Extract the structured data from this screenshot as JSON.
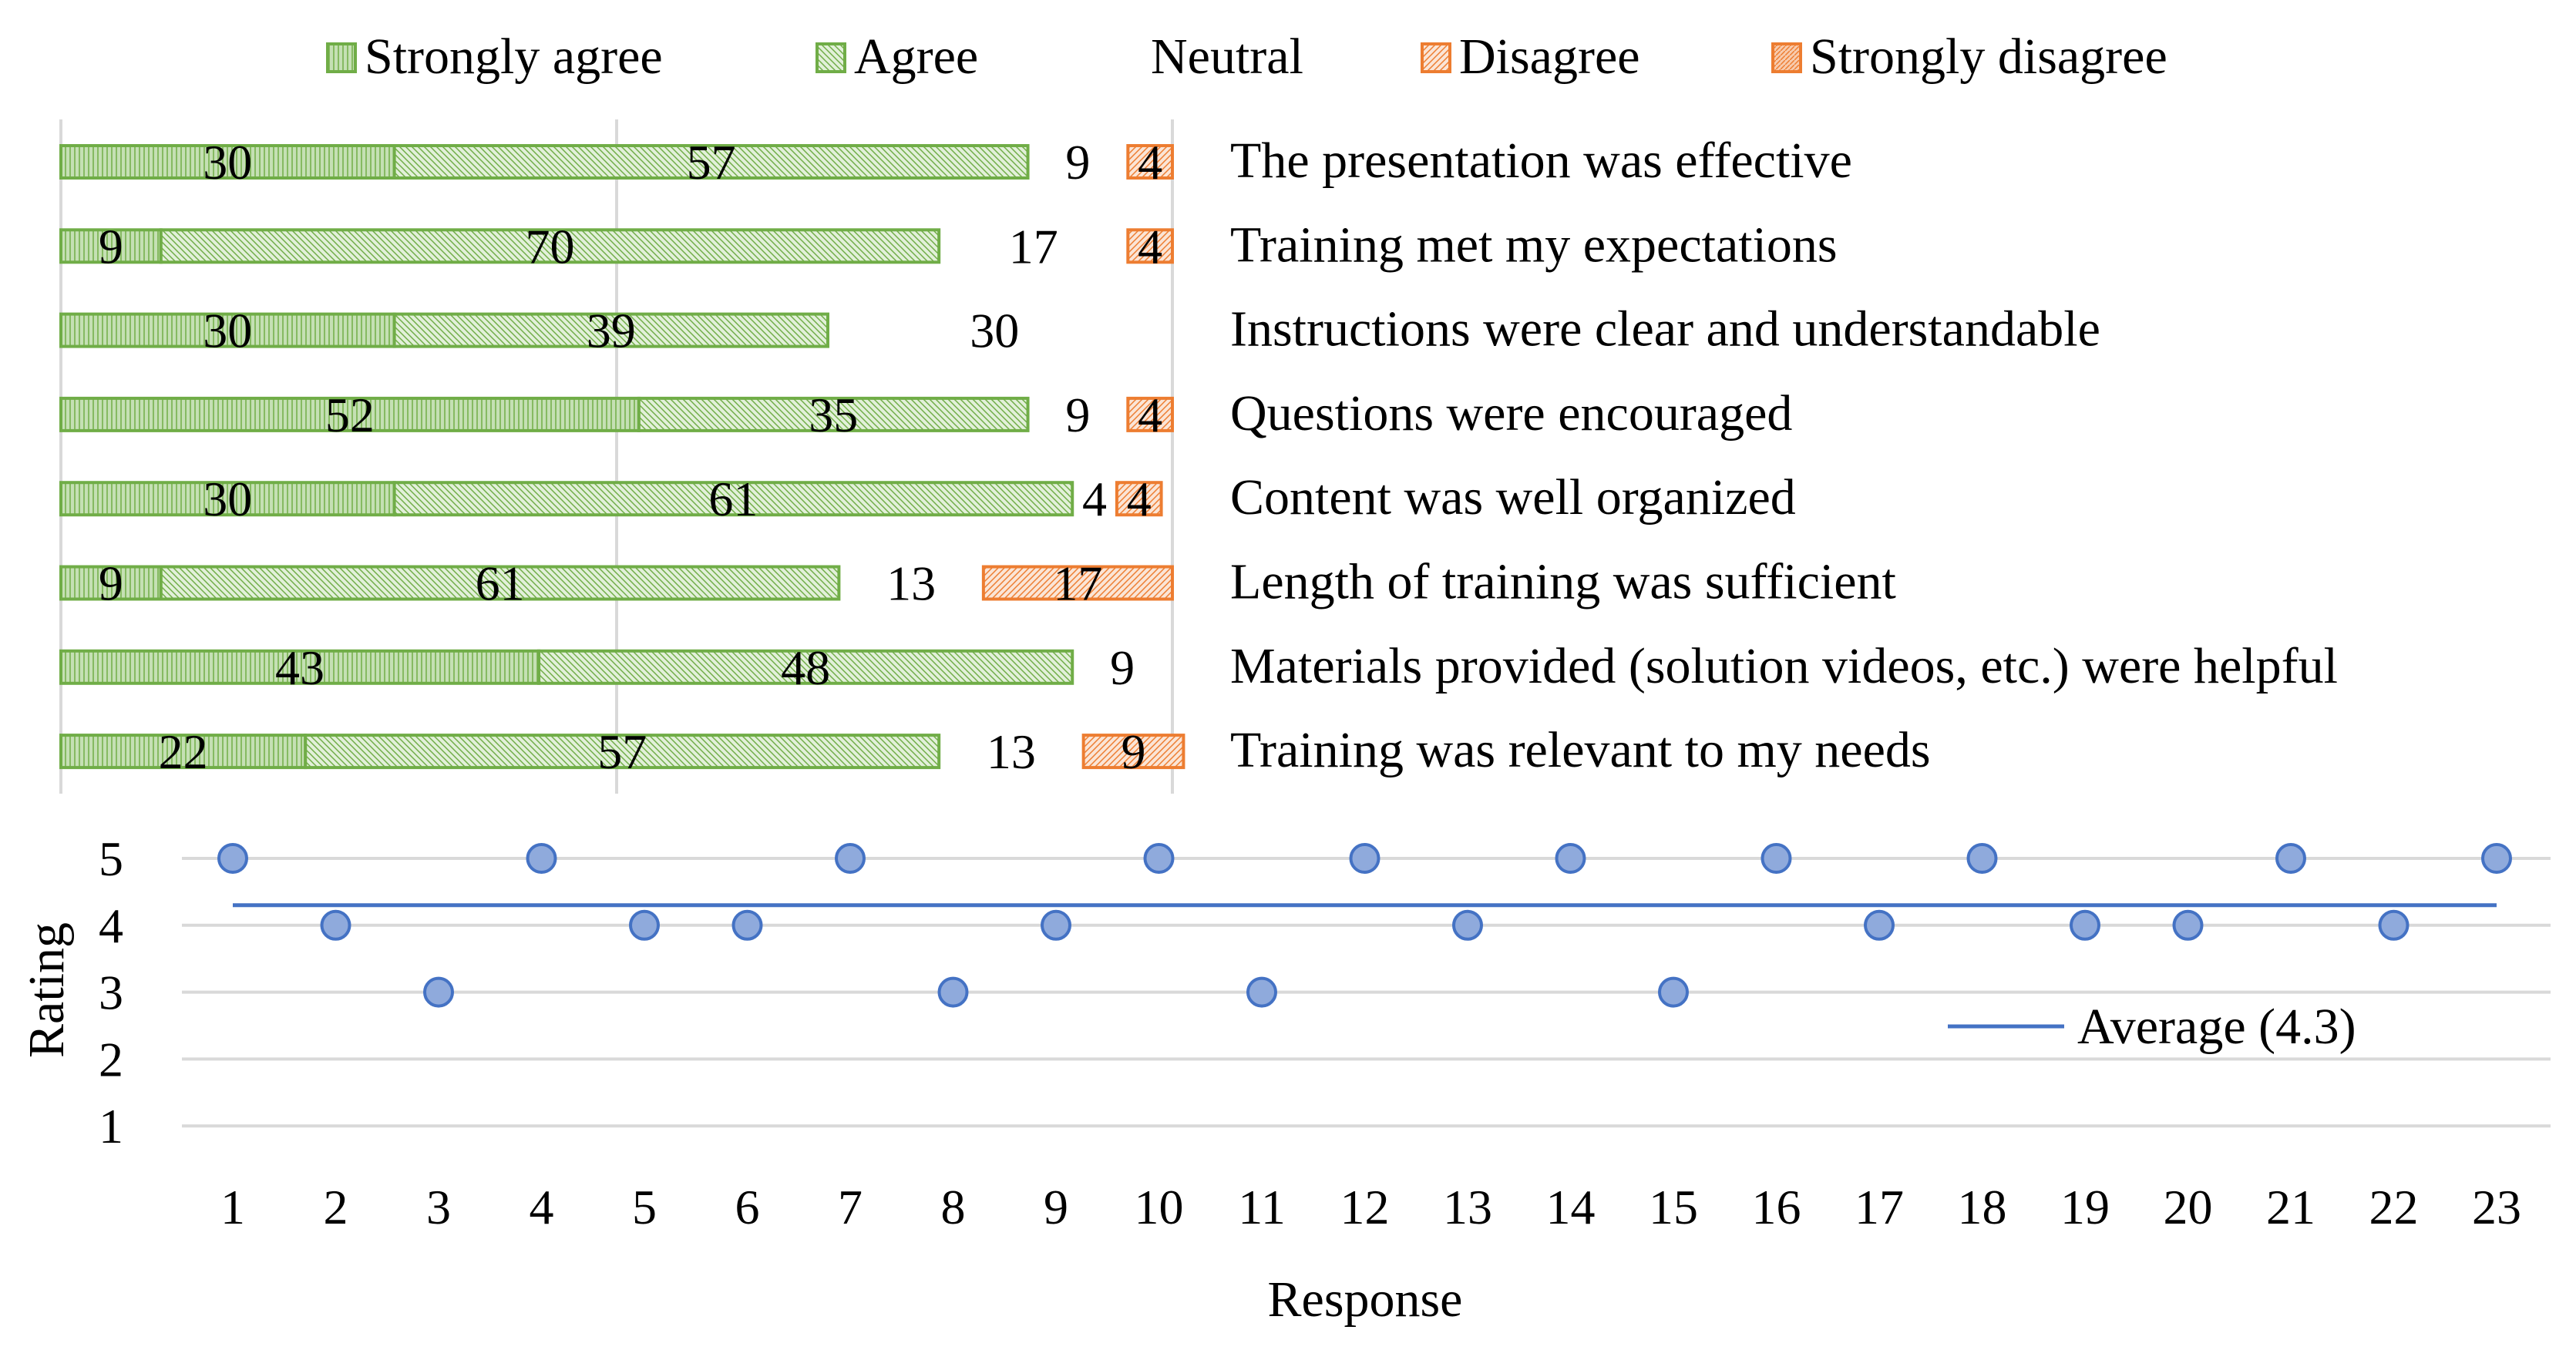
{
  "chart_data": [
    {
      "type": "bar",
      "orientation": "horizontal",
      "stacked": true,
      "legend_position": "top",
      "legend": [
        "Strongly agree",
        "Agree",
        "Neutral",
        "Disagree",
        "Strongly disagree"
      ],
      "xlim": [
        0,
        100
      ],
      "categories": [
        "The presentation was effective",
        "Training met my expectations",
        "Instructions were clear and understandable",
        "Questions were encouraged",
        "Content was well organized",
        "Length of training was sufficient",
        "Materials provided (solution videos, etc.) were helpful",
        "Training was relevant to my needs"
      ],
      "series": [
        {
          "name": "Strongly agree",
          "values": [
            30,
            9,
            30,
            52,
            30,
            9,
            43,
            22
          ],
          "color": "#70ad47"
        },
        {
          "name": "Agree",
          "values": [
            57,
            70,
            39,
            35,
            61,
            61,
            48,
            57
          ],
          "color": "#70ad47"
        },
        {
          "name": "Neutral",
          "values": [
            9,
            17,
            30,
            9,
            4,
            13,
            9,
            13
          ],
          "color": "none"
        },
        {
          "name": "Disagree",
          "values": [
            4,
            4,
            0,
            4,
            4,
            17,
            0,
            9
          ],
          "color": "#ed7d31"
        },
        {
          "name": "Strongly disagree",
          "values": [
            0,
            0,
            0,
            0,
            0,
            0,
            0,
            0
          ],
          "color": "#ed7d31"
        }
      ]
    },
    {
      "type": "scatter",
      "xlabel": "Response",
      "ylabel": "Rating",
      "x": [
        1,
        2,
        3,
        4,
        5,
        6,
        7,
        8,
        9,
        10,
        11,
        12,
        13,
        14,
        15,
        16,
        17,
        18,
        19,
        20,
        21,
        22,
        23
      ],
      "y": [
        5,
        4,
        3,
        5,
        4,
        4,
        5,
        3,
        4,
        5,
        3,
        5,
        4,
        5,
        3,
        5,
        4,
        5,
        4,
        4,
        5,
        4,
        5
      ],
      "ylim": [
        1,
        5
      ],
      "yticks": [
        "1",
        "2",
        "3",
        "4",
        "5"
      ],
      "xticks": [
        "1",
        "2",
        "3",
        "4",
        "5",
        "6",
        "7",
        "8",
        "9",
        "10",
        "11",
        "12",
        "13",
        "14",
        "15",
        "16",
        "17",
        "18",
        "19",
        "20",
        "21",
        "22",
        "23"
      ],
      "average": {
        "label": "Average (4.3)",
        "value": 4.3,
        "color": "#4472c4"
      },
      "marker_color": "#4472c4",
      "grid": true,
      "legend_position": "bottom-right"
    }
  ]
}
